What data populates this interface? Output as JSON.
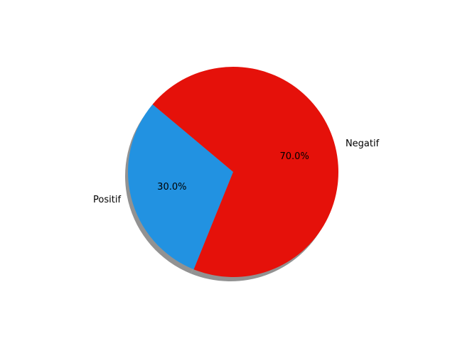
{
  "chart_data": {
    "type": "pie",
    "categories": [
      "Positif",
      "Negatif"
    ],
    "values": [
      30.0,
      70.0
    ],
    "percent_labels": [
      "30.0%",
      "70.0%"
    ],
    "colors": [
      "#2292e1",
      "#e5110a"
    ],
    "shadow": true,
    "title": "",
    "legend": "none"
  }
}
